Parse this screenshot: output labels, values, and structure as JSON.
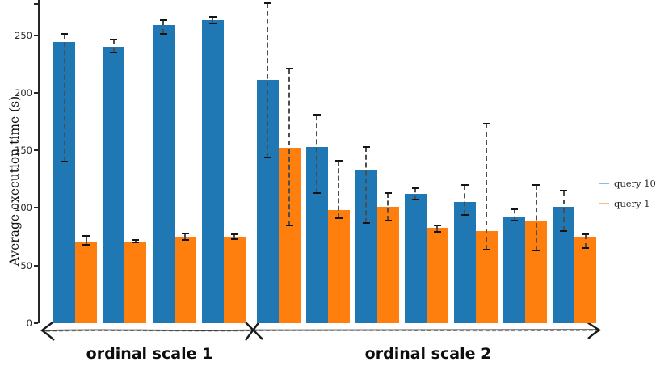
{
  "chart_data": {
    "type": "bar",
    "title": "",
    "xlabel": "",
    "ylabel": "Average execution time (s)",
    "yticks": [
      0,
      50,
      100,
      150,
      200,
      250
    ],
    "ylim_visible": [
      0,
      280
    ],
    "grid": false,
    "legend_position": "center-right",
    "x_axis_style": "hand-drawn double-headed arrow with X separator between groups",
    "error_bar_style": "dashed gray line with black caps",
    "series": [
      {
        "name": "query 10",
        "color": "#1f77b4",
        "legend_color": "#92bcdb"
      },
      {
        "name": "query 1",
        "color": "#ff7f0e",
        "legend_color": "#f5bd80"
      }
    ],
    "groups": [
      {
        "label": "ordinal scale 1",
        "bars": [
          {
            "query10": {
              "value": 244,
              "err_low": 140,
              "err_high": 251
            },
            "query1": {
              "value": 71,
              "err_low": 68,
              "err_high": 76
            }
          },
          {
            "query10": {
              "value": 240,
              "err_low": 235,
              "err_high": 246
            },
            "query1": {
              "value": 71,
              "err_low": 70,
              "err_high": 72
            }
          },
          {
            "query10": {
              "value": 259,
              "err_low": 251,
              "err_high": 263
            },
            "query1": {
              "value": 75,
              "err_low": 72,
              "err_high": 78
            }
          },
          {
            "query10": {
              "value": 263,
              "err_low": 260,
              "err_high": 266
            },
            "query1": {
              "value": 75,
              "err_low": 73,
              "err_high": 77
            }
          }
        ]
      },
      {
        "label": "ordinal scale 2",
        "bars": [
          {
            "query10": {
              "value": 211,
              "err_low": 144,
              "err_high": 278
            },
            "query1": {
              "value": 152,
              "err_low": 85,
              "err_high": 221
            }
          },
          {
            "query10": {
              "value": 153,
              "err_low": 113,
              "err_high": 181
            },
            "query1": {
              "value": 98,
              "err_low": 91,
              "err_high": 141
            }
          },
          {
            "query10": {
              "value": 133,
              "err_low": 87,
              "err_high": 153
            },
            "query1": {
              "value": 101,
              "err_low": 89,
              "err_high": 113
            }
          },
          {
            "query10": {
              "value": 112,
              "err_low": 107,
              "err_high": 117
            },
            "query1": {
              "value": 83,
              "err_low": 79,
              "err_high": 85
            }
          },
          {
            "query10": {
              "value": 105,
              "err_low": 94,
              "err_high": 120
            },
            "query1": {
              "value": 80,
              "err_low": 64,
              "err_high": 173
            }
          },
          {
            "query10": {
              "value": 92,
              "err_low": 89,
              "err_high": 99
            },
            "query1": {
              "value": 89,
              "err_low": 63,
              "err_high": 120
            }
          },
          {
            "query10": {
              "value": 101,
              "err_low": 80,
              "err_high": 115
            },
            "query1": {
              "value": 75,
              "err_low": 65,
              "err_high": 77
            }
          }
        ]
      }
    ]
  }
}
